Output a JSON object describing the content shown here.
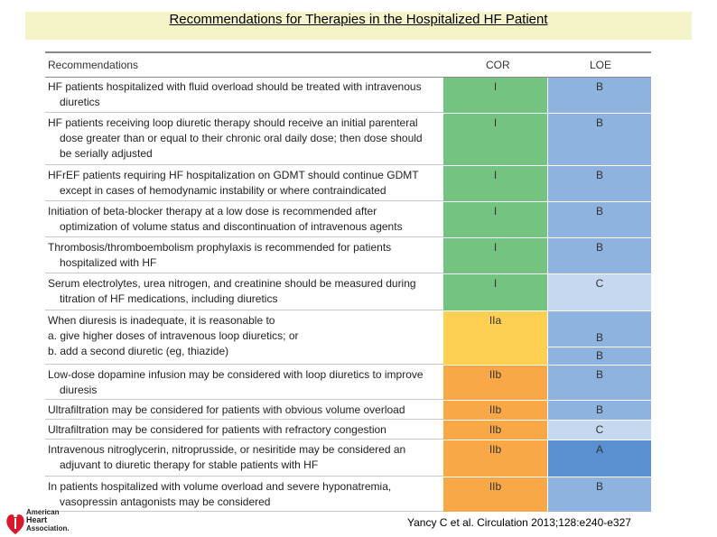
{
  "title": "Recommendations for Therapies in the Hospitalized HF Patient",
  "headers": {
    "rec": "Recommendations",
    "cor": "COR",
    "loe": "LOE"
  },
  "colors": {
    "green": "#74c380",
    "yellow": "#fdd053",
    "orange": "#f9a848",
    "blue": "#8eb3df",
    "lightblue": "#c5d8f0",
    "darkblue": "#5a90cf",
    "title_bg": "#f4f4c8"
  },
  "rows": [
    {
      "lines": [
        "HF patients hospitalized with fluid overload should be treated with intravenous",
        "diuretics"
      ],
      "cor": "I",
      "loe": "B"
    },
    {
      "lines": [
        "HF patients receiving loop diuretic therapy should receive an initial parenteral",
        "dose greater than or equal to their chronic oral daily dose; then dose should",
        "be serially adjusted"
      ],
      "cor": "I",
      "loe": "B"
    },
    {
      "lines": [
        "HFrEF patients requiring HF hospitalization on GDMT should continue GDMT",
        "except in cases of hemodynamic instability or where contraindicated"
      ],
      "cor": "I",
      "loe": "B"
    },
    {
      "lines": [
        "Initiation of beta-blocker therapy at a low dose is recommended after",
        "optimization of volume status and discontinuation of intravenous agents"
      ],
      "cor": "I",
      "loe": "B"
    },
    {
      "lines": [
        "Thrombosis/thromboembolism prophylaxis is recommended for patients",
        "hospitalized with HF"
      ],
      "cor": "I",
      "loe": "B"
    },
    {
      "lines": [
        "Serum electrolytes, urea nitrogen, and creatinine should be measured during",
        "titration of HF medications, including diuretics"
      ],
      "cor": "I",
      "loe": "C"
    },
    {
      "lines": [
        "When diuresis is inadequate, it is reasonable to",
        "a.  give higher doses of intravenous loop diuretics; or",
        "b.  add a second diuretic (eg, thiazide)"
      ],
      "cor": "IIa",
      "loe_a": "B",
      "loe_b": "B"
    },
    {
      "lines": [
        "Low-dose dopamine infusion may be considered with loop diuretics to improve",
        "diuresis"
      ],
      "cor": "IIb",
      "loe": "B"
    },
    {
      "lines": [
        "Ultrafiltration may be considered for patients with obvious volume overload"
      ],
      "cor": "IIb",
      "loe": "B"
    },
    {
      "lines": [
        "Ultrafiltration may be considered for patients with refractory congestion"
      ],
      "cor": "IIb",
      "loe": "C"
    },
    {
      "lines": [
        "Intravenous nitroglycerin, nitroprusside, or nesiritide may be considered an",
        "adjuvant to diuretic therapy for stable patients with HF"
      ],
      "cor": "IIb",
      "loe": "A"
    },
    {
      "lines": [
        "In patients hospitalized with volume overload and severe hyponatremia,",
        "vasopressin antagonists may be considered"
      ],
      "cor": "IIb",
      "loe": "B"
    }
  ],
  "citation": "Yancy C et al. Circulation 2013;128:e240-e327",
  "logo": {
    "line1": "American",
    "line2": "Heart",
    "line3": "Association."
  }
}
